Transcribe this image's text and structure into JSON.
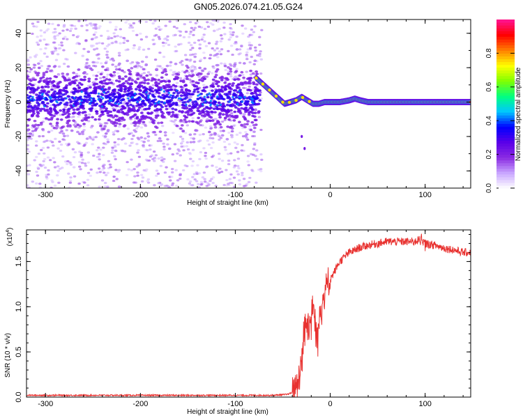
{
  "title": "GN05.2026.074.21.05.G24",
  "colors": {
    "snr_line": "#e8312f",
    "frame": "#000000",
    "colormap": [
      "#ffffff",
      "#c9a6ff",
      "#8a2be2",
      "#5a00e8",
      "#0000ff",
      "#00c8ff",
      "#00ff80",
      "#80ff00",
      "#ffff00",
      "#ff8000",
      "#ff0000",
      "#ff1493"
    ]
  },
  "chart_data": [
    {
      "type": "heatmap",
      "name": "spectrogram",
      "xlabel": "Height of straight line (km)",
      "ylabel": "Frequency (Hz)",
      "xlim": [
        -320,
        148
      ],
      "ylim": [
        -50,
        48
      ],
      "xticks": [
        -300,
        -200,
        -100,
        0,
        100
      ],
      "xtick_labels": [
        "-300",
        "-200",
        "-100",
        "0",
        "100"
      ],
      "yticks": [
        -40,
        -20,
        0,
        20,
        40
      ],
      "ytick_labels": [
        "-40",
        "-20",
        "0",
        "20",
        "40"
      ],
      "colorbar": {
        "label": "Normalized spectral amplitude",
        "range": [
          0.0,
          1.0
        ],
        "ticks": [
          0.0,
          0.2,
          0.4,
          0.6,
          0.8
        ],
        "tick_labels": [
          "0.0",
          "0.2",
          "0.4",
          "0.6",
          "0.8"
        ]
      },
      "ridge": {
        "x": [
          -78,
          -72,
          -66,
          -60,
          -54,
          -48,
          -42,
          -36,
          -30,
          -24,
          -18,
          -12,
          -6,
          0,
          10,
          20,
          26,
          32,
          40,
          60,
          80,
          100,
          120,
          148
        ],
        "y": [
          14,
          11,
          8,
          5,
          2,
          -1,
          0,
          1,
          3,
          1,
          -1,
          -1,
          0,
          0,
          0,
          1,
          2,
          1,
          0,
          0,
          0,
          0,
          0,
          0
        ]
      },
      "noise_region": {
        "x_from": -320,
        "x_to": -80,
        "center": 2,
        "spread": 8
      },
      "outlier_points": [
        [
          -30,
          -20
        ],
        [
          -27,
          -27
        ]
      ],
      "grid": false
    },
    {
      "type": "line",
      "name": "snr",
      "xlabel": "Height of straight line (km)",
      "ylabel": "SNR (10 * v/v)",
      "y_multiplier_label": "(x10",
      "y_multiplier_exp": "4",
      "y_multiplier_close": ")",
      "xlim": [
        -320,
        148
      ],
      "ylim": [
        0.0,
        1.85
      ],
      "xticks": [
        -300,
        -200,
        -100,
        0,
        100
      ],
      "xtick_labels": [
        "-300",
        "-200",
        "-100",
        "0",
        "100"
      ],
      "yticks": [
        0.0,
        0.5,
        1.0,
        1.5
      ],
      "ytick_labels": [
        "0.0",
        "0.5",
        "1.0",
        "1.5"
      ],
      "series": [
        {
          "x": [
            -320,
            -200,
            -100,
            -60,
            -45,
            -40,
            -35,
            -32,
            -30,
            -28,
            -25,
            -22,
            -18,
            -15,
            -12,
            -10,
            -8,
            -5,
            -2,
            0,
            5,
            10,
            15,
            20,
            25,
            30,
            40,
            50,
            60,
            70,
            80,
            90,
            95,
            100,
            110,
            120,
            130,
            140,
            148
          ],
          "y": [
            0.02,
            0.02,
            0.02,
            0.02,
            0.03,
            0.05,
            0.12,
            0.25,
            0.45,
            0.7,
            0.85,
            0.75,
            1.1,
            0.7,
            0.9,
            1.0,
            1.1,
            1.2,
            1.25,
            1.3,
            1.4,
            1.5,
            1.55,
            1.6,
            1.62,
            1.65,
            1.68,
            1.7,
            1.72,
            1.72,
            1.72,
            1.72,
            1.75,
            1.7,
            1.68,
            1.65,
            1.63,
            1.6,
            1.6
          ]
        }
      ],
      "grid": false
    }
  ]
}
